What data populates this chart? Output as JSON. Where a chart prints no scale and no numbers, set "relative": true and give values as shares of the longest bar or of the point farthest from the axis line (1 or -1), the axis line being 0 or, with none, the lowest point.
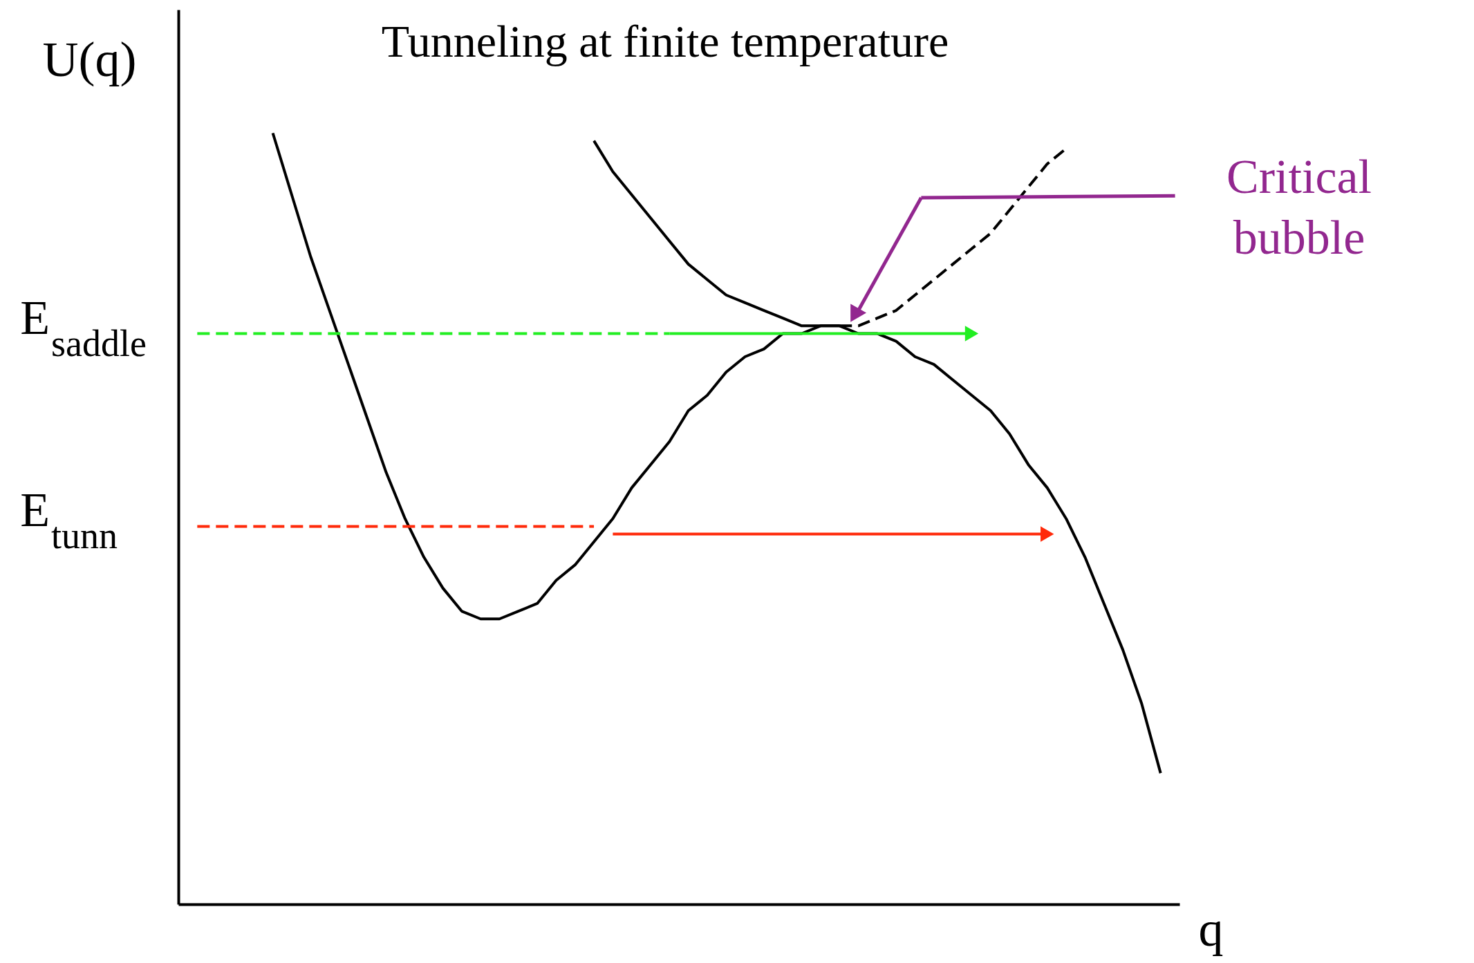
{
  "chart_data": {
    "type": "line",
    "relative": true,
    "title": "Tunneling at finite temperature",
    "xlabel": "q",
    "ylabel": "U(q)",
    "categories": [
      null,
      null,
      null,
      null,
      null,
      null,
      null,
      null,
      null,
      null,
      null,
      null,
      null,
      null,
      null,
      null,
      null,
      null,
      null,
      null,
      null,
      null,
      null,
      null,
      null,
      null,
      null,
      null,
      null,
      null,
      null,
      null,
      null,
      null,
      null,
      null,
      null,
      null,
      null,
      null,
      null,
      null,
      null,
      null,
      null,
      null,
      null,
      null,
      null,
      null,
      null,
      null
    ],
    "series": [
      {
        "color": "#000000",
        "line_style": "solid",
        "values": [
          null,
          null,
          null,
          null,
          1.0,
          0.92,
          0.84,
          0.77,
          0.7,
          0.63,
          0.56,
          0.5,
          0.45,
          0.41,
          0.38,
          0.37,
          0.37,
          0.38,
          0.39,
          0.42,
          0.44,
          0.47,
          0.5,
          0.54,
          0.57,
          0.6,
          0.64,
          0.66,
          0.69,
          0.71,
          0.72,
          0.74,
          0.74,
          0.75,
          0.75,
          0.74,
          0.74,
          0.73,
          0.71,
          0.7,
          0.68,
          0.66,
          0.64,
          0.61,
          0.57,
          0.54,
          0.5,
          0.45,
          0.39,
          0.33,
          0.26,
          0.17
        ]
      },
      {
        "color": "#000000",
        "line_style": "solid",
        "values": [
          null,
          null,
          null,
          null,
          null,
          null,
          null,
          null,
          null,
          null,
          null,
          null,
          null,
          null,
          null,
          null,
          null,
          null,
          null,
          null,
          null,
          0.99,
          0.95,
          0.92,
          0.89,
          0.86,
          0.83,
          0.81,
          0.79,
          0.78,
          0.77,
          0.76,
          0.75,
          0.75,
          0.75,
          null,
          null,
          null,
          null,
          null,
          null,
          null,
          null,
          null,
          null,
          null,
          null,
          null,
          null,
          null,
          null,
          null
        ]
      },
      {
        "color": "#000000",
        "line_style": "dashed",
        "values": [
          null,
          null,
          null,
          null,
          null,
          null,
          null,
          null,
          null,
          null,
          null,
          null,
          null,
          null,
          null,
          null,
          null,
          null,
          null,
          null,
          null,
          null,
          null,
          null,
          null,
          null,
          null,
          null,
          null,
          null,
          null,
          null,
          null,
          null,
          0.75,
          0.75,
          0.76,
          0.77,
          0.79,
          0.81,
          0.83,
          0.85,
          0.87,
          0.9,
          0.93,
          0.96,
          0.98,
          null,
          null,
          null,
          null,
          null
        ]
      },
      {
        "name": "E$_{saddle}$",
        "color": "#22ee22",
        "line_style": "dashed",
        "values": [
          0.74,
          0.74,
          0.74,
          0.74,
          0.74,
          0.74,
          0.74,
          0.74,
          0.74,
          0.74,
          0.74,
          0.74,
          0.74,
          0.74,
          0.74,
          0.74,
          0.74,
          0.74,
          0.74,
          0.74,
          0.74,
          0.74,
          0.74,
          0.74,
          0.74,
          0.74,
          null,
          null,
          null,
          null,
          null,
          null,
          null,
          null,
          null,
          null,
          null,
          null,
          null,
          null,
          null,
          null,
          null,
          null,
          null,
          null,
          null,
          null,
          null,
          null,
          null,
          null
        ]
      },
      {
        "color": "#22ee22",
        "line_style": "solid",
        "values": [
          null,
          null,
          null,
          null,
          null,
          null,
          null,
          null,
          null,
          null,
          null,
          null,
          null,
          null,
          null,
          null,
          null,
          null,
          null,
          null,
          null,
          null,
          null,
          null,
          null,
          0.74,
          0.74,
          0.74,
          0.74,
          0.74,
          0.74,
          0.74,
          0.74,
          0.74,
          0.74,
          0.74,
          0.74,
          0.74,
          0.74,
          0.74,
          0.74,
          0.74,
          null,
          null,
          null,
          null,
          null,
          null,
          null,
          null,
          null,
          null
        ]
      },
      {
        "name": "E$_{tunn}$",
        "color": "#ff2a0a",
        "line_style": "dashed",
        "values": [
          0.49,
          0.49,
          0.49,
          0.49,
          0.49,
          0.49,
          0.49,
          0.49,
          0.49,
          0.49,
          0.49,
          0.49,
          0.49,
          0.49,
          0.49,
          0.49,
          0.49,
          0.49,
          0.49,
          0.49,
          0.49,
          0.49,
          null,
          null,
          null,
          null,
          null,
          null,
          null,
          null,
          null,
          null,
          null,
          null,
          null,
          null,
          null,
          null,
          null,
          null,
          null,
          null,
          null,
          null,
          null,
          null,
          null,
          null,
          null,
          null,
          null,
          null
        ]
      },
      {
        "color": "#ff2a0a",
        "line_style": "solid",
        "values": [
          null,
          null,
          null,
          null,
          null,
          null,
          null,
          null,
          null,
          null,
          null,
          null,
          null,
          null,
          null,
          null,
          null,
          null,
          null,
          null,
          null,
          null,
          0.48,
          0.48,
          0.48,
          0.48,
          0.48,
          0.48,
          0.48,
          0.48,
          0.48,
          0.48,
          0.48,
          0.48,
          0.48,
          0.48,
          0.48,
          0.48,
          0.48,
          0.48,
          0.48,
          0.48,
          0.48,
          0.48,
          0.48,
          0.48,
          null,
          null,
          null,
          null,
          null,
          null
        ]
      }
    ],
    "annotations": [
      "Critical bubble"
    ]
  }
}
